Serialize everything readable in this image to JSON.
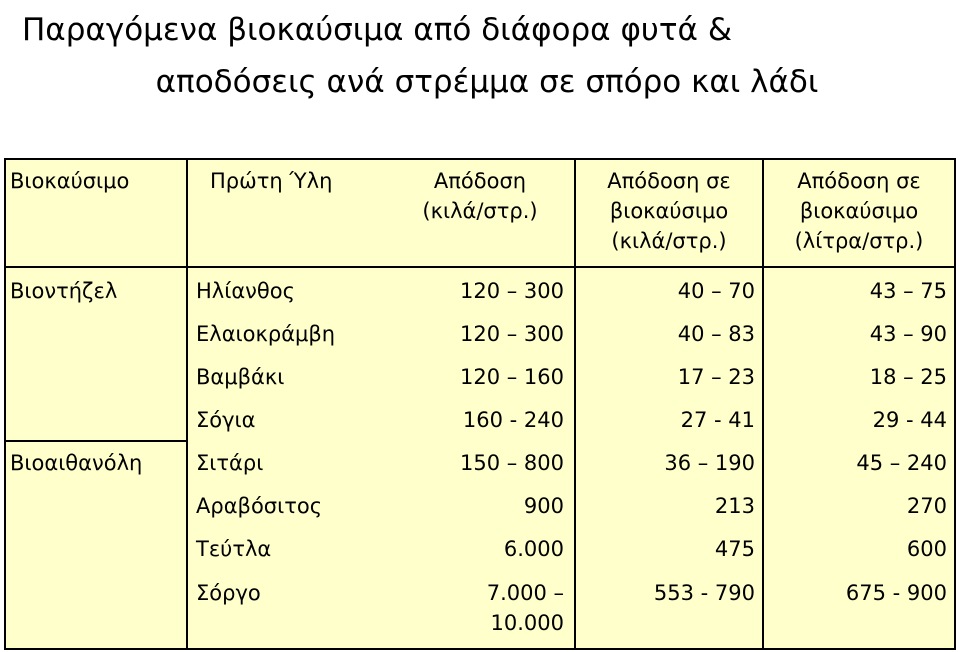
{
  "title": {
    "line1": "Παραγόμενα βιοκαύσιμα από διάφορα φυτά &",
    "line2": "αποδόσεις ανά στρέμμα σε σπόρο και λάδι"
  },
  "table": {
    "headers": {
      "biofuel": "Βιοκαύσιμο",
      "feedstock": "Πρώτη Ύλη",
      "yield_l1": "Απόδοση",
      "yield_l2": "(κιλά/στρ.)",
      "yield_kg_l1": "Απόδοση σε",
      "yield_kg_l2": "βιοκαύσιμο",
      "yield_kg_l3": "(κιλά/στρ.)",
      "yield_lt_l1": "Απόδοση σε",
      "yield_lt_l2": "βιοκαύσιμο",
      "yield_lt_l3": "(λίτρα/στρ.)"
    },
    "groups": [
      "Βιοντήζελ",
      "Βιοαιθανόλη"
    ],
    "rows": [
      {
        "feedstock": "Ηλίανθος",
        "yield": "120 – 300",
        "kg": "40 – 70",
        "lt": "43 – 75"
      },
      {
        "feedstock": "Ελαιοκράμβη",
        "yield": "120 – 300",
        "kg": "40 – 83",
        "lt": "43 – 90"
      },
      {
        "feedstock": "Βαμβάκι",
        "yield": "120 – 160",
        "kg": "17 – 23",
        "lt": "18 – 25"
      },
      {
        "feedstock": "Σόγια",
        "yield": "160 - 240",
        "kg": "27 - 41",
        "lt": "29 - 44"
      },
      {
        "feedstock": "Σιτάρι",
        "yield": "150 – 800",
        "kg": "36 – 190",
        "lt": "45 – 240"
      },
      {
        "feedstock": "Αραβόσιτος",
        "yield": "900",
        "kg": "213",
        "lt": "270"
      },
      {
        "feedstock": "Τεύτλα",
        "yield": "6.000",
        "kg": "475",
        "lt": "600"
      },
      {
        "feedstock": "Σόργο",
        "yield_l1": "7.000 –",
        "yield_l2": "10.000",
        "kg": "553 - 790",
        "lt": "675 - 900"
      }
    ]
  }
}
